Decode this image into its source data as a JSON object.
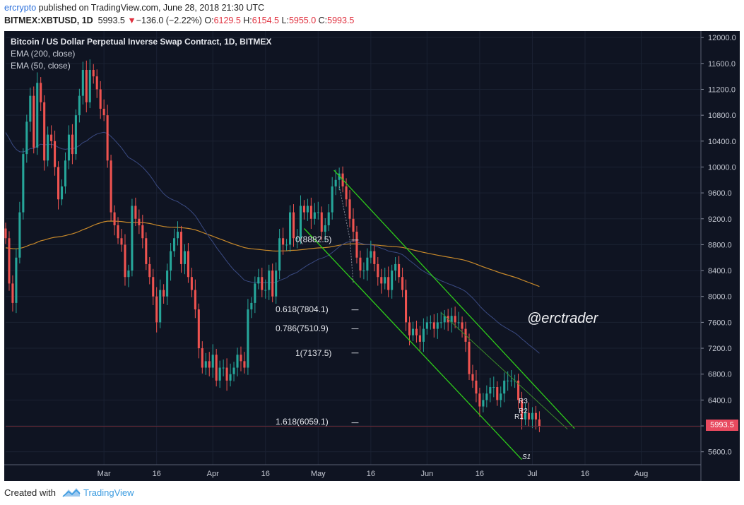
{
  "header": {
    "author": "ercrypto",
    "published_text": " published on TradingView.com, June 28, 2018 21:30 UTC",
    "symbol": "BITMEX:XBTUSD, 1D",
    "last_price": "5993.5",
    "change_arrow": "▼",
    "change": "−136.0 (−2.22%)",
    "ohlc": {
      "o_label": "O:",
      "o_value": "6129.5",
      "h_label": "H:",
      "h_value": "6154.5",
      "l_label": "L:",
      "l_value": "5955.0",
      "c_label": "C:",
      "c_value": "5993.5"
    }
  },
  "legend": {
    "title": "Bitcoin / US Dollar Perpetual Inverse Swap Contract, 1D, BITMEX",
    "ema200": "EMA (200, close)",
    "ema50": "EMA (50, close)"
  },
  "fib_levels": [
    {
      "label": "0(8882.5)"
    },
    {
      "label": "0.618(7804.1)"
    },
    {
      "label": "0.786(7510.9)"
    },
    {
      "label": "1(7137.5)"
    },
    {
      "label": "1.618(6059.1)"
    }
  ],
  "pivot_labels": {
    "r3": "R3",
    "r2": "R2",
    "r1": "R1",
    "s1": "S1"
  },
  "watermark": "@erctrader",
  "current_price_tag": "5993.5",
  "footer": {
    "created_with": "Created with",
    "brand": "TradingView"
  },
  "colors": {
    "up": "#26a69a",
    "down": "#ef5350",
    "channel": "#2ecc1a",
    "ema200": "#c8892a",
    "ema50": "#3a4a82",
    "background": "#0f1422"
  },
  "chart_data": {
    "type": "candlestick",
    "y_ticks": [
      12000,
      11600,
      11200,
      10800,
      10400,
      10000,
      9600,
      9200,
      8800,
      8400,
      8000,
      7600,
      7200,
      6800,
      6400,
      6000,
      5600
    ],
    "y_tick_labels": [
      "12000.0",
      "11600.0",
      "11200.0",
      "10800.0",
      "10400.0",
      "10000.0",
      "9600.0",
      "9200.0",
      "8800.0",
      "8400.0",
      "8000.0",
      "7600.0",
      "7200.0",
      "6800.0",
      "6400.0",
      "6000.0",
      "5600.0"
    ],
    "ylim": [
      5400,
      12100
    ],
    "x_ticks": [
      {
        "label": "Mar",
        "day": 28
      },
      {
        "label": "16",
        "day": 43
      },
      {
        "label": "Apr",
        "day": 59
      },
      {
        "label": "16",
        "day": 74
      },
      {
        "label": "May",
        "day": 89
      },
      {
        "label": "16",
        "day": 104
      },
      {
        "label": "Jun",
        "day": 120
      },
      {
        "label": "16",
        "day": 135
      },
      {
        "label": "Jul",
        "day": 150
      },
      {
        "label": "16",
        "day": 165
      },
      {
        "label": "Aug",
        "day": 181
      }
    ],
    "xlim": [
      0,
      198
    ],
    "closes": [
      8900,
      8200,
      7900,
      8600,
      9300,
      10200,
      10700,
      11100,
      10300,
      11300,
      11000,
      10100,
      10500,
      10400,
      10000,
      9500,
      9700,
      10100,
      10500,
      10200,
      10800,
      11100,
      11500,
      11000,
      11500,
      11400,
      11200,
      10900,
      10800,
      10100,
      9300,
      9100,
      8900,
      8800,
      8300,
      8400,
      9400,
      9200,
      9100,
      8900,
      8500,
      8300,
      8000,
      7600,
      8100,
      8000,
      8400,
      8700,
      8900,
      9000,
      8500,
      8700,
      8300,
      8100,
      7800,
      7200,
      6900,
      7000,
      6900,
      7100,
      6700,
      6900,
      6900,
      6700,
      6800,
      6900,
      7100,
      7000,
      6900,
      7800,
      7900,
      8200,
      8300,
      8100,
      8100,
      8400,
      8000,
      8400,
      8900,
      8800,
      8800,
      9300,
      8900,
      8900,
      9400,
      9300,
      9400,
      9200,
      9300,
      9300,
      9000,
      9100,
      9300,
      9700,
      9800,
      9900,
      9700,
      9500,
      9200,
      9000,
      8600,
      8400,
      8400,
      8600,
      8700,
      8500,
      8300,
      8200,
      8300,
      8100,
      8400,
      8500,
      8300,
      8100,
      7600,
      7400,
      7500,
      7400,
      7300,
      7500,
      7600,
      7600,
      7500,
      7600,
      7600,
      7700,
      7600,
      7700,
      7600,
      7600,
      7500,
      7300,
      6800,
      6700,
      6500,
      6300,
      6400,
      6500,
      6600,
      6600,
      6400,
      6500,
      6700,
      6700,
      6700,
      6700,
      6400,
      6100,
      6200,
      6100,
      6200,
      6100,
      5993.5
    ]
  }
}
